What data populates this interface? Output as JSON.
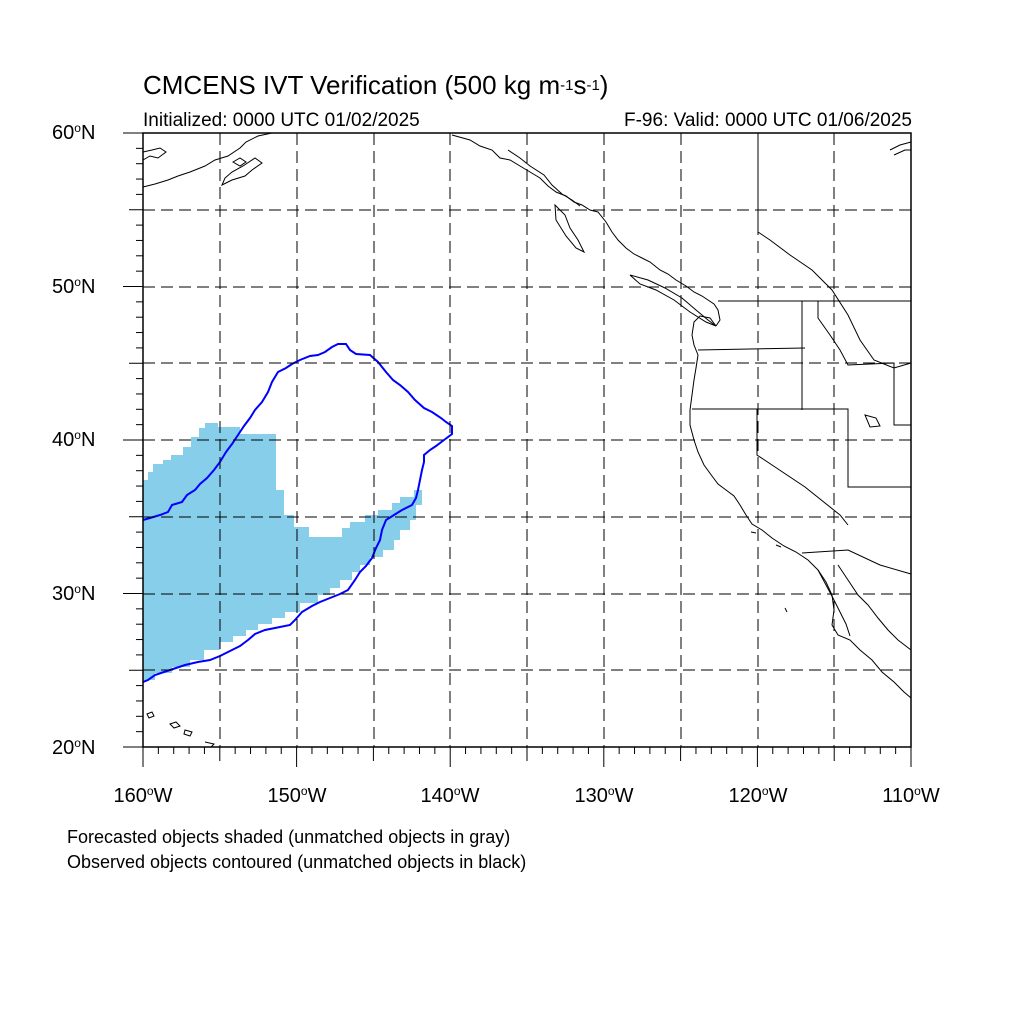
{
  "title": {
    "prefix": "CMCENS IVT Verification (500 kg m",
    "exp1": "-1",
    "mid": "s",
    "exp2": "-1",
    "suffix": ")"
  },
  "initialized": "Initialized: 0000 UTC 01/02/2025",
  "valid": "F-96: Valid: 0000 UTC 01/06/2025",
  "lat_labels": [
    {
      "text": "60",
      "unit": "o",
      "dir": "N",
      "lat": 60
    },
    {
      "text": "50",
      "unit": "o",
      "dir": "N",
      "lat": 50
    },
    {
      "text": "40",
      "unit": "o",
      "dir": "N",
      "lat": 40
    },
    {
      "text": "30",
      "unit": "o",
      "dir": "N",
      "lat": 30
    },
    {
      "text": "20",
      "unit": "o",
      "dir": "N",
      "lat": 20
    }
  ],
  "lon_labels": [
    {
      "text": "160",
      "unit": "o",
      "dir": "W",
      "lon": -160
    },
    {
      "text": "150",
      "unit": "o",
      "dir": "W",
      "lon": -150
    },
    {
      "text": "140",
      "unit": "o",
      "dir": "W",
      "lon": -140
    },
    {
      "text": "130",
      "unit": "o",
      "dir": "W",
      "lon": -130
    },
    {
      "text": "120",
      "unit": "o",
      "dir": "W",
      "lon": -120
    },
    {
      "text": "110",
      "unit": "o",
      "dir": "W",
      "lon": -110
    }
  ],
  "notes": {
    "forecast": "Forecasted objects shaded (unmatched objects in gray)",
    "observed": "Observed objects contoured (unmatched objects in black)"
  },
  "colors": {
    "forecast_fill": "#87ceeb",
    "observed_contour": "#0000ff",
    "coastline": "#000000",
    "grid": "#000000"
  },
  "map": {
    "lon_range": [
      -160,
      -110
    ],
    "lat_range": [
      20,
      60
    ],
    "gridline_step_deg": 5,
    "gridline_style": "dashed"
  }
}
